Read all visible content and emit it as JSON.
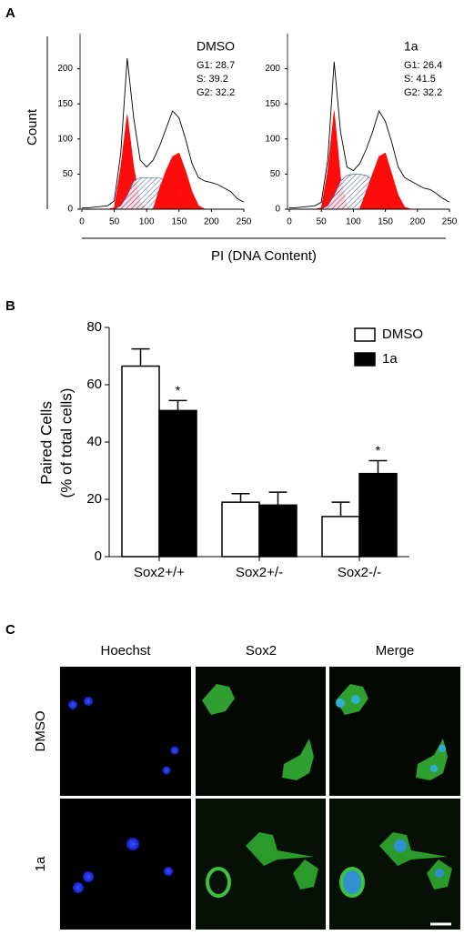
{
  "panels": [
    "A",
    "B",
    "C"
  ],
  "panel_a": {
    "y_label": "Count",
    "x_label": "PI (DNA Content)"
  },
  "chart_data": [
    {
      "type": "area",
      "title": "DMSO",
      "annotations": [
        "G1: 28.7",
        "S: 39.2",
        "G2: 32.2"
      ],
      "x": [
        0,
        10,
        20,
        30,
        40,
        50,
        60,
        70,
        80,
        90,
        100,
        110,
        120,
        130,
        140,
        150,
        160,
        170,
        180,
        190,
        200,
        210,
        220,
        230,
        240,
        250
      ],
      "series": [
        {
          "color": "#000000",
          "values": [
            2,
            2,
            3,
            4,
            5,
            12,
            80,
            215,
            130,
            70,
            60,
            70,
            90,
            115,
            140,
            130,
            100,
            65,
            45,
            40,
            38,
            35,
            30,
            25,
            15,
            10
          ]
        },
        {
          "color": "#ff0000",
          "values": [
            0,
            0,
            0,
            0,
            0,
            2,
            60,
            135,
            60,
            10,
            0,
            0,
            0,
            0,
            0,
            0,
            0,
            0,
            0,
            0,
            0,
            0,
            0,
            0,
            0,
            0
          ]
        },
        {
          "color": "#3b4fa0",
          "hatch": true,
          "values": [
            0,
            0,
            0,
            0,
            0,
            0,
            5,
            20,
            40,
            45,
            45,
            45,
            45,
            40,
            30,
            15,
            0,
            0,
            0,
            0,
            0,
            0,
            0,
            0,
            0,
            0
          ]
        },
        {
          "color": "#ff0000",
          "values": [
            0,
            0,
            0,
            0,
            0,
            0,
            0,
            0,
            0,
            0,
            0,
            0,
            30,
            55,
            75,
            80,
            55,
            25,
            5,
            0,
            0,
            0,
            0,
            0,
            0,
            0
          ]
        }
      ],
      "xlim": [
        0,
        250
      ],
      "ylim": [
        0,
        250
      ],
      "xticks": [
        0,
        50,
        100,
        150,
        200,
        250
      ],
      "yticks": [
        0,
        50,
        100,
        150,
        200
      ]
    },
    {
      "type": "area",
      "title": "1a",
      "annotations": [
        "G1: 26.4",
        "S: 41.5",
        "G2: 32.2"
      ],
      "x": [
        0,
        10,
        20,
        30,
        40,
        50,
        60,
        70,
        80,
        90,
        100,
        110,
        120,
        130,
        140,
        150,
        160,
        170,
        180,
        190,
        200,
        210,
        220,
        230,
        240,
        250
      ],
      "series": [
        {
          "color": "#000000",
          "values": [
            2,
            2,
            3,
            4,
            5,
            10,
            70,
            210,
            110,
            60,
            55,
            65,
            85,
            110,
            140,
            125,
            95,
            60,
            45,
            40,
            35,
            30,
            28,
            22,
            15,
            10
          ]
        },
        {
          "color": "#ff0000",
          "values": [
            0,
            0,
            0,
            0,
            0,
            2,
            55,
            140,
            45,
            5,
            0,
            0,
            0,
            0,
            0,
            0,
            0,
            0,
            0,
            0,
            0,
            0,
            0,
            0,
            0,
            0
          ]
        },
        {
          "color": "#3b4fa0",
          "hatch": true,
          "values": [
            0,
            0,
            0,
            0,
            0,
            0,
            5,
            20,
            40,
            48,
            50,
            50,
            48,
            42,
            30,
            12,
            0,
            0,
            0,
            0,
            0,
            0,
            0,
            0,
            0,
            0
          ]
        },
        {
          "color": "#ff0000",
          "values": [
            0,
            0,
            0,
            0,
            0,
            0,
            0,
            0,
            0,
            0,
            0,
            0,
            25,
            50,
            75,
            80,
            50,
            20,
            3,
            0,
            0,
            0,
            0,
            0,
            0,
            0
          ]
        }
      ],
      "xlim": [
        0,
        250
      ],
      "ylim": [
        0,
        250
      ],
      "xticks": [
        0,
        50,
        100,
        150,
        200,
        250
      ],
      "yticks": [
        0,
        50,
        100,
        150,
        200
      ]
    },
    {
      "type": "bar",
      "y_label": [
        "Paired Cells",
        "(% of total cells)"
      ],
      "categories": [
        "Sox2+/+",
        "Sox2+/-",
        "Sox2-/-"
      ],
      "series": [
        {
          "name": "DMSO",
          "color": "#ffffff",
          "values": [
            66.5,
            19,
            14
          ],
          "errors": [
            6,
            3,
            5
          ]
        },
        {
          "name": "1a",
          "color": "#000000",
          "values": [
            51,
            18,
            29
          ],
          "errors": [
            3.5,
            4.5,
            4.5
          ]
        }
      ],
      "annotations": [
        {
          "text": "*",
          "category": "Sox2+/+"
        },
        {
          "text": "*",
          "category": "Sox2-/-"
        }
      ],
      "ylim": [
        0,
        80
      ],
      "yticks": [
        0,
        20,
        40,
        60,
        80
      ],
      "legend": "upper-right"
    }
  ],
  "panel_c": {
    "columns": [
      "Hoechst",
      "Sox2",
      "Merge"
    ],
    "rows": [
      "DMSO",
      "1a"
    ]
  }
}
